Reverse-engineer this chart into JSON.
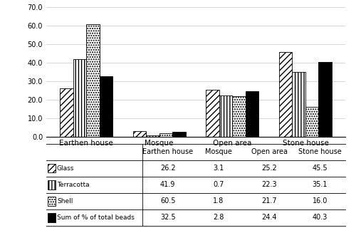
{
  "categories": [
    "Earthen house",
    "Mosque",
    "Open area",
    "Stone house"
  ],
  "series": {
    "Glass": [
      26.2,
      3.1,
      25.2,
      45.5
    ],
    "Terracotta": [
      41.9,
      0.7,
      22.3,
      35.1
    ],
    "Shell": [
      60.5,
      1.8,
      21.7,
      16.0
    ],
    "Sum of % of total beads": [
      32.5,
      2.8,
      24.4,
      40.3
    ]
  },
  "ylim": [
    0.0,
    70.0
  ],
  "yticks": [
    0.0,
    10.0,
    20.0,
    30.0,
    40.0,
    50.0,
    60.0,
    70.0
  ],
  "bar_width": 0.18,
  "hatches": [
    "////",
    "||||",
    ".....",
    ""
  ],
  "facecolors": [
    "white",
    "white",
    "white",
    "black"
  ],
  "edgecolors": [
    "black",
    "black",
    "black",
    "black"
  ],
  "legend_labels": [
    "Glass",
    "Terracotta",
    "Shell",
    "Sum of % of total beads"
  ],
  "legend_symbols": [
    "\\\\\\\\",
    "||||",
    "□",
    "■"
  ],
  "background_color": "white",
  "grid_color": "#d0d0d0"
}
